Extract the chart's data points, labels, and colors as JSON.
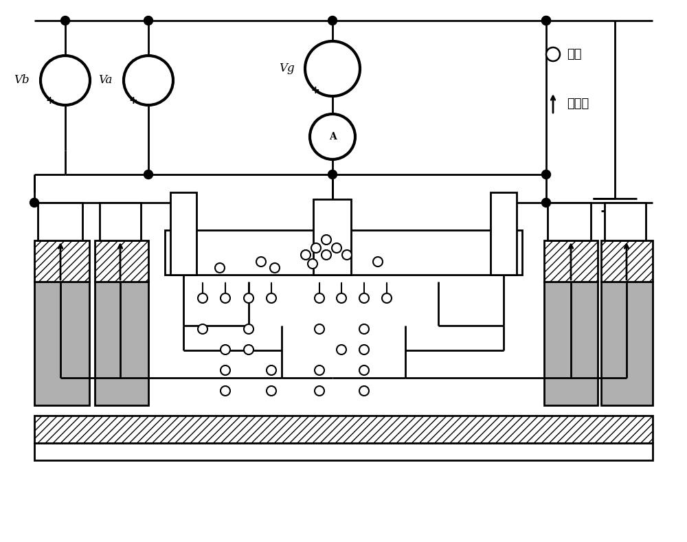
{
  "fig_width": 10.0,
  "fig_height": 7.89,
  "bg_color": "#ffffff",
  "lc": "#000000",
  "lw": 2.0,
  "legend_electron": "电子",
  "legend_field": "电场线",
  "vb_label": "Vb",
  "va_label": "Va",
  "vg_label": "Vg",
  "amp_label": "A",
  "minus": "-",
  "plus": "+"
}
